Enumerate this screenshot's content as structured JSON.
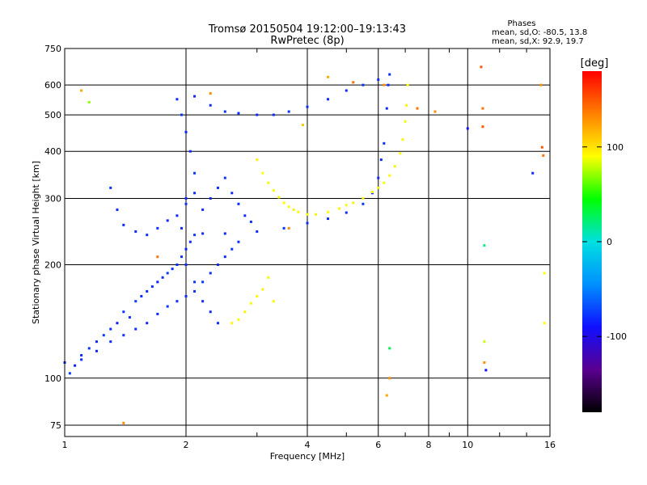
{
  "chart_data": {
    "type": "scatter",
    "title": "Tromsø 20150504 19:12:00–19:13:43",
    "subtitle": "RwPretec (8p)",
    "xlabel": "Frequency [MHz]",
    "ylabel": "Stationary phase Virtual Height [km]",
    "x_scale": "log",
    "y_scale": "log",
    "xlim": [
      1,
      16
    ],
    "ylim": [
      70,
      750
    ],
    "x_ticks": [
      1,
      2,
      4,
      6,
      8,
      10,
      16
    ],
    "x_tick_labels": [
      "1",
      "2",
      "4",
      "6",
      "8",
      "10",
      "16"
    ],
    "y_ticks": [
      75,
      100,
      200,
      300,
      400,
      500,
      600,
      750
    ],
    "y_tick_labels": [
      "75",
      "100",
      "200",
      "300",
      "400",
      "500",
      "600",
      "750"
    ],
    "grid": true,
    "stats": {
      "title": "Phases",
      "lines": [
        "mean, sd,O: -80.5, 13.8",
        "mean, sd,X:  92.9, 19.7"
      ]
    },
    "colorbar": {
      "label": "[deg]",
      "range": [
        -180,
        180
      ],
      "ticks": [
        100,
        0,
        -100
      ],
      "tick_labels": [
        "100",
        "0",
        "-100"
      ],
      "colors": [
        "#000000",
        "#5a0090",
        "#1010ff",
        "#0090ff",
        "#00e0e0",
        "#00ff00",
        "#ffff00",
        "#ff8000",
        "#ff0000"
      ]
    },
    "series": [
      {
        "values": [
          [
            1.0,
            110,
            -80
          ],
          [
            1.03,
            103,
            -75
          ],
          [
            1.06,
            108,
            -85
          ],
          [
            1.1,
            115,
            -80
          ],
          [
            1.15,
            120,
            -78
          ],
          [
            1.2,
            125,
            -82
          ],
          [
            1.25,
            130,
            -75
          ],
          [
            1.3,
            135,
            -80
          ],
          [
            1.35,
            140,
            -85
          ],
          [
            1.4,
            150,
            -78
          ],
          [
            1.45,
            145,
            -80
          ],
          [
            1.5,
            160,
            -75
          ],
          [
            1.55,
            165,
            -82
          ],
          [
            1.6,
            170,
            -80
          ],
          [
            1.65,
            175,
            -78
          ],
          [
            1.7,
            180,
            -85
          ],
          [
            1.75,
            185,
            -80
          ],
          [
            1.8,
            190,
            -75
          ],
          [
            1.85,
            195,
            -82
          ],
          [
            1.9,
            200,
            -80
          ],
          [
            1.95,
            210,
            -78
          ],
          [
            2.0,
            220,
            -85
          ],
          [
            2.05,
            230,
            -80
          ],
          [
            2.1,
            240,
            -75
          ],
          [
            1.3,
            320,
            -78
          ],
          [
            1.35,
            280,
            -80
          ],
          [
            1.4,
            255,
            -82
          ],
          [
            1.5,
            245,
            -80
          ],
          [
            1.6,
            240,
            -78
          ],
          [
            1.7,
            250,
            -80
          ],
          [
            1.8,
            262,
            -82
          ],
          [
            1.9,
            270,
            -80
          ],
          [
            2.0,
            290,
            -78
          ],
          [
            2.1,
            310,
            -80
          ],
          [
            1.9,
            550,
            -80
          ],
          [
            1.95,
            500,
            -78
          ],
          [
            2.0,
            450,
            -82
          ],
          [
            2.05,
            400,
            -80
          ],
          [
            2.1,
            350,
            -78
          ],
          [
            2.0,
            300,
            -80
          ],
          [
            1.95,
            250,
            -82
          ],
          [
            2.0,
            200,
            -80
          ],
          [
            2.1,
            180,
            -78
          ],
          [
            2.2,
            160,
            -80
          ],
          [
            2.3,
            150,
            -82
          ],
          [
            2.4,
            140,
            -80
          ],
          [
            2.1,
            560,
            -82
          ],
          [
            2.3,
            530,
            -80
          ],
          [
            2.5,
            510,
            -78
          ],
          [
            2.7,
            505,
            -80
          ],
          [
            3.0,
            500,
            -82
          ],
          [
            3.3,
            500,
            -80
          ],
          [
            3.6,
            510,
            -78
          ],
          [
            4.0,
            525,
            -80
          ],
          [
            4.5,
            550,
            -82
          ],
          [
            5.0,
            580,
            -80
          ],
          [
            5.5,
            600,
            -78
          ],
          [
            6.0,
            620,
            -80
          ],
          [
            2.2,
            242,
            -80
          ],
          [
            2.5,
            242,
            -82
          ],
          [
            3.0,
            245,
            -80
          ],
          [
            3.5,
            250,
            -78
          ],
          [
            4.0,
            258,
            -80
          ],
          [
            4.5,
            265,
            -82
          ],
          [
            5.0,
            275,
            -80
          ],
          [
            5.5,
            290,
            -78
          ],
          [
            5.8,
            310,
            -80
          ],
          [
            6.0,
            340,
            -82
          ],
          [
            6.1,
            380,
            -80
          ],
          [
            6.2,
            420,
            -78
          ],
          [
            6.3,
            520,
            -80
          ],
          [
            6.35,
            600,
            -82
          ],
          [
            6.4,
            640,
            -80
          ],
          [
            1.1,
            112,
            -80
          ],
          [
            1.2,
            118,
            -82
          ],
          [
            1.3,
            125,
            -80
          ],
          [
            1.4,
            130,
            -78
          ],
          [
            1.5,
            135,
            -80
          ],
          [
            1.6,
            140,
            -82
          ],
          [
            1.7,
            148,
            -80
          ],
          [
            1.8,
            155,
            -78
          ],
          [
            1.9,
            160,
            -80
          ],
          [
            2.0,
            165,
            -82
          ],
          [
            2.1,
            170,
            -80
          ],
          [
            2.2,
            180,
            -78
          ],
          [
            2.3,
            190,
            -80
          ],
          [
            2.4,
            200,
            -82
          ],
          [
            2.5,
            210,
            -80
          ],
          [
            2.6,
            220,
            -78
          ],
          [
            2.7,
            230,
            -80
          ],
          [
            2.2,
            280,
            -80
          ],
          [
            2.3,
            300,
            -82
          ],
          [
            2.4,
            320,
            -80
          ],
          [
            2.5,
            340,
            -78
          ],
          [
            2.6,
            310,
            -80
          ],
          [
            2.7,
            290,
            -82
          ],
          [
            2.8,
            270,
            -80
          ],
          [
            2.9,
            260,
            -78
          ]
        ]
      },
      {
        "values": [
          [
            3.0,
            380,
            95
          ],
          [
            3.1,
            350,
            90
          ],
          [
            3.2,
            330,
            92
          ],
          [
            3.3,
            315,
            88
          ],
          [
            3.4,
            302,
            95
          ],
          [
            3.5,
            292,
            92
          ],
          [
            3.6,
            285,
            90
          ],
          [
            3.7,
            280,
            95
          ],
          [
            3.8,
            276,
            88
          ],
          [
            4.0,
            272,
            92
          ],
          [
            4.2,
            272,
            95
          ],
          [
            4.5,
            276,
            90
          ],
          [
            4.8,
            282,
            92
          ],
          [
            5.0,
            288,
            88
          ],
          [
            5.2,
            292,
            95
          ],
          [
            5.5,
            300,
            92
          ],
          [
            5.8,
            312,
            90
          ],
          [
            6.0,
            320,
            95
          ],
          [
            6.2,
            330,
            88
          ],
          [
            6.4,
            345,
            92
          ],
          [
            6.6,
            365,
            95
          ],
          [
            6.8,
            395,
            90
          ],
          [
            6.9,
            430,
            92
          ],
          [
            7.0,
            480,
            88
          ],
          [
            7.05,
            530,
            95
          ],
          [
            7.1,
            600,
            92
          ],
          [
            2.6,
            140,
            92
          ],
          [
            2.7,
            143,
            88
          ],
          [
            2.8,
            150,
            95
          ],
          [
            2.9,
            158,
            90
          ],
          [
            3.0,
            165,
            92
          ],
          [
            3.1,
            172,
            95
          ],
          [
            3.2,
            185,
            88
          ],
          [
            3.3,
            160,
            92
          ]
        ]
      },
      {
        "values": [
          [
            1.1,
            580,
            120
          ],
          [
            1.15,
            540,
            70
          ],
          [
            1.4,
            76,
            130
          ],
          [
            1.7,
            210,
            140
          ],
          [
            2.3,
            570,
            130
          ],
          [
            3.6,
            250,
            130
          ],
          [
            3.9,
            470,
            110
          ],
          [
            4.5,
            630,
            120
          ],
          [
            5.2,
            610,
            140
          ],
          [
            6.3,
            90,
            120
          ],
          [
            6.4,
            100,
            130
          ],
          [
            7.5,
            520,
            140
          ],
          [
            8.3,
            510,
            130
          ],
          [
            10.8,
            670,
            150
          ],
          [
            10.9,
            520,
            140
          ],
          [
            10.9,
            465,
            150
          ],
          [
            11.0,
            125,
            80
          ],
          [
            11.0,
            110,
            130
          ],
          [
            11.1,
            105,
            -90
          ],
          [
            14.5,
            350,
            -80
          ],
          [
            15.2,
            600,
            130
          ],
          [
            15.3,
            410,
            150
          ],
          [
            15.4,
            390,
            140
          ],
          [
            15.5,
            190,
            90
          ],
          [
            15.5,
            140,
            90
          ],
          [
            6.4,
            120,
            30
          ],
          [
            10.0,
            460,
            -90
          ],
          [
            11.0,
            225,
            20
          ],
          [
            6.2,
            600,
            130
          ]
        ]
      }
    ]
  }
}
